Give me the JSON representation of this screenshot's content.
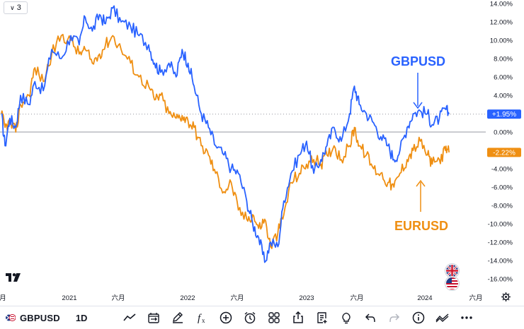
{
  "legend": {
    "count": "3",
    "toggle_icon": "chevron-down"
  },
  "colors": {
    "gbp": "#2962ff",
    "eur": "#ef8f12",
    "axis_text": "#131722",
    "grid": "#9598a1"
  },
  "chart_data": {
    "type": "line",
    "title": "GBPUSD",
    "y_unit": "%",
    "ylim": [
      -17.2,
      14.5
    ],
    "y_ticks": [
      "14.00%",
      "12.00%",
      "10.00%",
      "8.00%",
      "6.00%",
      "4.00%",
      "2.00%",
      "0.00%",
      "-2.00%",
      "-4.00%",
      "-6.00%",
      "-8.00%",
      "-10.00%",
      "-12.00%",
      "-14.00%",
      "-16.00%"
    ],
    "x_ticks": [
      "月",
      "2021",
      "六月",
      "2022",
      "六月",
      "2023",
      "六月",
      "2024",
      "六月"
    ],
    "reference_lines": [
      {
        "y": 0,
        "style": "solid"
      },
      {
        "y": 1.95,
        "style": "dotted"
      }
    ],
    "series": [
      {
        "name": "GBPUSD",
        "last_value_label": "+1.95%",
        "annotation": "GBPUSD",
        "points": [
          [
            0,
            2.0
          ],
          [
            0.3,
            -1.5
          ],
          [
            0.7,
            1.5
          ],
          [
            1.2,
            0.5
          ],
          [
            1.6,
            4.0
          ],
          [
            2.3,
            3.0
          ],
          [
            2.8,
            5.5
          ],
          [
            3.5,
            4.5
          ],
          [
            4.2,
            9.0
          ],
          [
            5.0,
            8.0
          ],
          [
            5.8,
            10.5
          ],
          [
            6.5,
            9.5
          ],
          [
            7.0,
            12.5
          ],
          [
            7.6,
            11.0
          ],
          [
            8.2,
            12.8
          ],
          [
            8.7,
            11.8
          ],
          [
            9.3,
            13.5
          ],
          [
            10.0,
            12.0
          ],
          [
            10.8,
            11.5
          ],
          [
            11.5,
            10.5
          ],
          [
            12.3,
            9.5
          ],
          [
            12.8,
            7.5
          ],
          [
            13.3,
            6.5
          ],
          [
            14.0,
            7.5
          ],
          [
            14.6,
            6.0
          ],
          [
            15.1,
            9.0
          ],
          [
            15.6,
            7.5
          ],
          [
            16.1,
            5.0
          ],
          [
            16.7,
            2.0
          ],
          [
            17.3,
            0.5
          ],
          [
            17.9,
            -1.5
          ],
          [
            18.6,
            -2.5
          ],
          [
            19.2,
            -4.0
          ],
          [
            19.8,
            -4.5
          ],
          [
            20.5,
            -7.5
          ],
          [
            21.0,
            -10.0
          ],
          [
            21.5,
            -11.5
          ],
          [
            22.0,
            -14.2
          ],
          [
            22.5,
            -12.0
          ],
          [
            23.1,
            -12.5
          ],
          [
            23.6,
            -7.5
          ],
          [
            24.2,
            -4.5
          ],
          [
            24.9,
            -2.5
          ],
          [
            25.5,
            -1.0
          ],
          [
            26.1,
            -4.5
          ],
          [
            26.7,
            -3.0
          ],
          [
            27.2,
            -1.5
          ],
          [
            27.8,
            0.5
          ],
          [
            28.4,
            -1.0
          ],
          [
            29.1,
            2.0
          ],
          [
            29.5,
            5.0
          ],
          [
            29.9,
            3.0
          ],
          [
            30.5,
            2.0
          ],
          [
            31.1,
            1.0
          ],
          [
            31.7,
            -0.5
          ],
          [
            32.3,
            -1.5
          ],
          [
            32.8,
            -3.0
          ],
          [
            33.3,
            -2.0
          ],
          [
            33.9,
            0.5
          ],
          [
            34.4,
            2.0
          ],
          [
            35.0,
            2.3
          ],
          [
            35.6,
            2.0
          ],
          [
            36.0,
            0.8
          ],
          [
            36.6,
            1.5
          ],
          [
            37.1,
            2.5
          ],
          [
            37.4,
            1.95
          ]
        ]
      },
      {
        "name": "EURUSD",
        "last_value_label": "-2.22%",
        "annotation": "EURUSD",
        "points": [
          [
            0,
            2.0
          ],
          [
            0.3,
            0.5
          ],
          [
            0.7,
            1.0
          ],
          [
            1.2,
            0.0
          ],
          [
            1.6,
            3.0
          ],
          [
            2.3,
            4.0
          ],
          [
            2.8,
            7.0
          ],
          [
            3.5,
            5.5
          ],
          [
            4.2,
            8.5
          ],
          [
            5.0,
            10.5
          ],
          [
            5.8,
            10.0
          ],
          [
            6.5,
            8.5
          ],
          [
            7.0,
            9.0
          ],
          [
            7.6,
            7.5
          ],
          [
            8.2,
            8.5
          ],
          [
            8.7,
            9.5
          ],
          [
            9.3,
            10.5
          ],
          [
            10.0,
            9.0
          ],
          [
            10.8,
            7.5
          ],
          [
            11.5,
            6.0
          ],
          [
            12.3,
            5.0
          ],
          [
            12.8,
            3.5
          ],
          [
            13.3,
            4.0
          ],
          [
            14.0,
            2.0
          ],
          [
            14.6,
            1.5
          ],
          [
            15.1,
            1.8
          ],
          [
            15.6,
            1.2
          ],
          [
            16.1,
            0.5
          ],
          [
            16.7,
            -1.5
          ],
          [
            17.3,
            -2.5
          ],
          [
            17.9,
            -4.5
          ],
          [
            18.6,
            -6.5
          ],
          [
            19.2,
            -5.5
          ],
          [
            19.8,
            -8.5
          ],
          [
            20.5,
            -9.5
          ],
          [
            21.0,
            -9.0
          ],
          [
            21.5,
            -10.5
          ],
          [
            22.0,
            -9.5
          ],
          [
            22.5,
            -12.5
          ],
          [
            23.1,
            -11.0
          ],
          [
            23.6,
            -9.0
          ],
          [
            24.2,
            -5.5
          ],
          [
            24.9,
            -4.5
          ],
          [
            25.5,
            -3.5
          ],
          [
            26.1,
            -3.0
          ],
          [
            26.7,
            -3.5
          ],
          [
            27.2,
            -2.5
          ],
          [
            27.8,
            -1.5
          ],
          [
            28.4,
            -3.0
          ],
          [
            29.1,
            -1.5
          ],
          [
            29.5,
            0.5
          ],
          [
            29.9,
            -1.5
          ],
          [
            30.5,
            -2.5
          ],
          [
            31.1,
            -4.0
          ],
          [
            31.7,
            -4.5
          ],
          [
            32.3,
            -5.5
          ],
          [
            32.8,
            -6.0
          ],
          [
            33.3,
            -4.5
          ],
          [
            33.9,
            -3.0
          ],
          [
            34.4,
            -2.0
          ],
          [
            35.0,
            -1.0
          ],
          [
            35.6,
            -2.5
          ],
          [
            36.0,
            -3.5
          ],
          [
            36.6,
            -3.0
          ],
          [
            37.1,
            -2.0
          ],
          [
            37.4,
            -2.22
          ]
        ]
      }
    ]
  },
  "toolbar": {
    "symbol": "GBPUSD",
    "timeframe": "1D",
    "tools": [
      "chart-type-icon",
      "compare-calendar-icon",
      "draw-pen-icon",
      "indicators-fx-icon",
      "add-plus-icon",
      "alert-clock-icon",
      "layout-grid-icon",
      "share-icon",
      "notes-icon",
      "ideas-bulb-icon",
      "undo-icon",
      "redo-icon",
      "info-icon",
      "replay-icon",
      "more-icon"
    ]
  }
}
